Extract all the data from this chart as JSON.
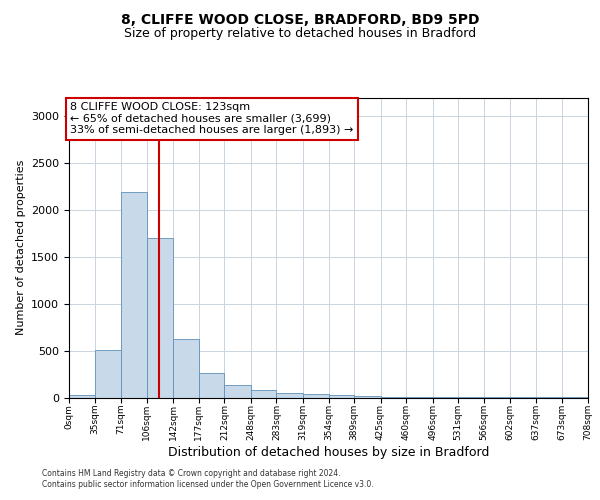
{
  "title1": "8, CLIFFE WOOD CLOSE, BRADFORD, BD9 5PD",
  "title2": "Size of property relative to detached houses in Bradford",
  "xlabel": "Distribution of detached houses by size in Bradford",
  "ylabel": "Number of detached properties",
  "bar_color": "#c8daea",
  "bar_edge_color": "#6090b8",
  "vline_color": "#cc0000",
  "annotation_box_edgecolor": "#cc0000",
  "property_size": 123,
  "annotation_line1": "8 CLIFFE WOOD CLOSE: 123sqm",
  "annotation_line2": "← 65% of detached houses are smaller (3,699)",
  "annotation_line3": "33% of semi-detached houses are larger (1,893) →",
  "footnote1": "Contains HM Land Registry data © Crown copyright and database right 2024.",
  "footnote2": "Contains public sector information licensed under the Open Government Licence v3.0.",
  "bins": [
    0,
    35,
    71,
    106,
    142,
    177,
    212,
    248,
    283,
    319,
    354,
    389,
    425,
    460,
    496,
    531,
    566,
    602,
    637,
    673,
    708
  ],
  "bin_labels": [
    "0sqm",
    "35sqm",
    "71sqm",
    "106sqm",
    "142sqm",
    "177sqm",
    "212sqm",
    "248sqm",
    "283sqm",
    "319sqm",
    "354sqm",
    "389sqm",
    "425sqm",
    "460sqm",
    "496sqm",
    "531sqm",
    "566sqm",
    "602sqm",
    "637sqm",
    "673sqm",
    "708sqm"
  ],
  "bar_heights": [
    28,
    510,
    2190,
    1700,
    625,
    260,
    130,
    82,
    52,
    42,
    30,
    18,
    10,
    6,
    4,
    2,
    2,
    1,
    1,
    1
  ],
  "ylim": [
    0,
    3200
  ],
  "yticks": [
    0,
    500,
    1000,
    1500,
    2000,
    2500,
    3000
  ],
  "xlim": [
    0,
    708
  ],
  "background_color": "#ffffff",
  "grid_color": "#c8d4e0",
  "title1_fontsize": 10,
  "title2_fontsize": 9,
  "ylabel_fontsize": 8,
  "xlabel_fontsize": 9,
  "tick_fontsize": 8,
  "xtick_fontsize": 6.5,
  "annotation_fontsize": 8,
  "footnote_fontsize": 5.5
}
